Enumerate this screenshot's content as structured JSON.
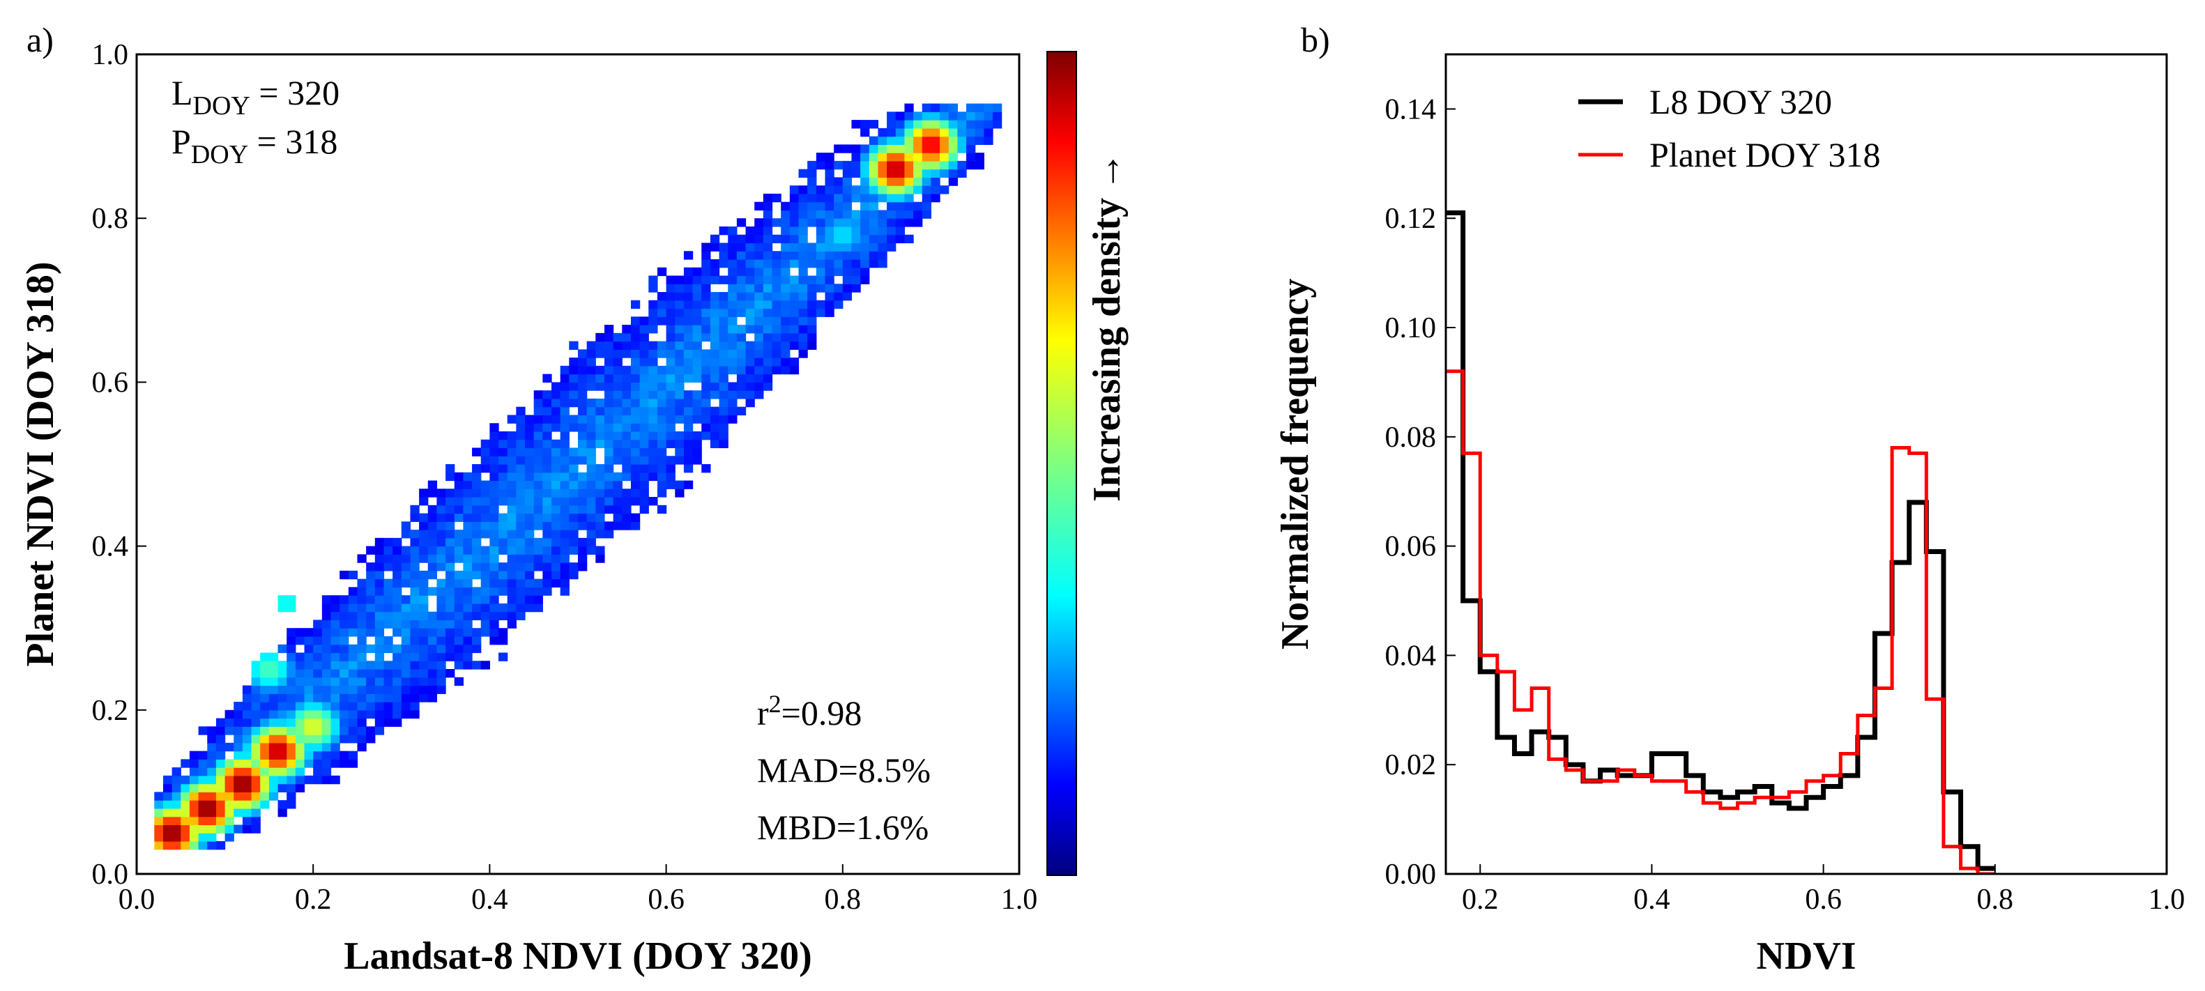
{
  "panels": {
    "a": {
      "label": "a)",
      "annotations": {
        "l_doy": "L",
        "l_doy_sub": "DOY",
        "l_doy_val": " = 320",
        "p_doy": "P",
        "p_doy_sub": "DOY",
        "p_doy_val": " = 318",
        "r2": "r",
        "r2_sup": "2",
        "r2_val": "=0.98",
        "mad": "MAD=8.5%",
        "mbd": "MBD=1.6%"
      },
      "colorbar_label": "Increasing density",
      "colorbar_arrow": "→"
    },
    "b": {
      "label": "b)"
    }
  },
  "chart_data": [
    {
      "type": "heatmap",
      "title": "",
      "xlabel": "Landsat-8 NDVI (DOY 320)",
      "ylabel": "Planet NDVI (DOY 318)",
      "xlim": [
        0.0,
        1.0
      ],
      "ylim": [
        0.0,
        1.0
      ],
      "xticks": [
        "0.0",
        "0.2",
        "0.4",
        "0.6",
        "0.8",
        "1.0"
      ],
      "yticks": [
        "0.0",
        "0.2",
        "0.4",
        "0.6",
        "0.8",
        "1.0"
      ],
      "colormap": "jet",
      "density_ridges": [
        {
          "x": 0.04,
          "y": 0.05,
          "density": 1.0
        },
        {
          "x": 0.08,
          "y": 0.08,
          "density": 1.0
        },
        {
          "x": 0.12,
          "y": 0.11,
          "density": 1.0
        },
        {
          "x": 0.16,
          "y": 0.15,
          "density": 0.95
        },
        {
          "x": 0.2,
          "y": 0.18,
          "density": 0.6
        },
        {
          "x": 0.15,
          "y": 0.25,
          "density": 0.45
        },
        {
          "x": 0.17,
          "y": 0.33,
          "density": 0.4
        },
        {
          "x": 0.3,
          "y": 0.3,
          "density": 0.2
        },
        {
          "x": 0.4,
          "y": 0.4,
          "density": 0.2
        },
        {
          "x": 0.5,
          "y": 0.47,
          "density": 0.22
        },
        {
          "x": 0.6,
          "y": 0.56,
          "density": 0.22
        },
        {
          "x": 0.7,
          "y": 0.66,
          "density": 0.22
        },
        {
          "x": 0.8,
          "y": 0.78,
          "density": 0.35
        },
        {
          "x": 0.86,
          "y": 0.86,
          "density": 0.95
        },
        {
          "x": 0.9,
          "y": 0.89,
          "density": 0.9
        }
      ],
      "stats": {
        "r2": 0.98,
        "MAD_percent": 8.5,
        "MBD_percent": 1.6
      }
    },
    {
      "type": "line",
      "title": "",
      "xlabel": "NDVI",
      "ylabel": "Normalized frequency",
      "xlim": [
        0.16,
        1.0
      ],
      "ylim": [
        0.0,
        0.15
      ],
      "xticks": [
        "0.2",
        "0.4",
        "0.6",
        "0.8",
        "1.0"
      ],
      "yticks": [
        "0.00",
        "0.02",
        "0.04",
        "0.06",
        "0.08",
        "0.10",
        "0.12",
        "0.14"
      ],
      "legend_position": "top-center",
      "bin_edges": [
        0.16,
        0.18,
        0.2,
        0.22,
        0.24,
        0.26,
        0.28,
        0.3,
        0.32,
        0.34,
        0.36,
        0.38,
        0.4,
        0.42,
        0.44,
        0.46,
        0.48,
        0.5,
        0.52,
        0.54,
        0.56,
        0.58,
        0.6,
        0.62,
        0.64,
        0.66,
        0.68,
        0.7,
        0.72,
        0.74,
        0.76,
        0.78,
        0.8,
        0.82,
        0.84,
        0.86,
        0.88,
        0.9,
        0.92,
        0.94,
        0.96,
        0.98,
        1.0
      ],
      "series": [
        {
          "name": "L8 DOY 320",
          "color": "#000000",
          "values": [
            0.121,
            0.05,
            0.037,
            0.025,
            0.022,
            0.026,
            0.025,
            0.02,
            0.017,
            0.019,
            0.018,
            0.018,
            0.022,
            0.022,
            0.018,
            0.015,
            0.014,
            0.015,
            0.016,
            0.013,
            0.012,
            0.014,
            0.016,
            0.018,
            0.025,
            0.044,
            0.057,
            0.068,
            0.059,
            0.015,
            0.005,
            0.001
          ]
        },
        {
          "name": "Planet DOY 318",
          "color": "#ff0000",
          "values": [
            0.092,
            0.077,
            0.04,
            0.037,
            0.03,
            0.034,
            0.021,
            0.019,
            0.017,
            0.017,
            0.019,
            0.018,
            0.017,
            0.017,
            0.015,
            0.013,
            0.012,
            0.013,
            0.014,
            0.014,
            0.015,
            0.017,
            0.018,
            0.022,
            0.029,
            0.034,
            0.078,
            0.077,
            0.032,
            0.005,
            0.001,
            0.0
          ]
        }
      ]
    }
  ]
}
